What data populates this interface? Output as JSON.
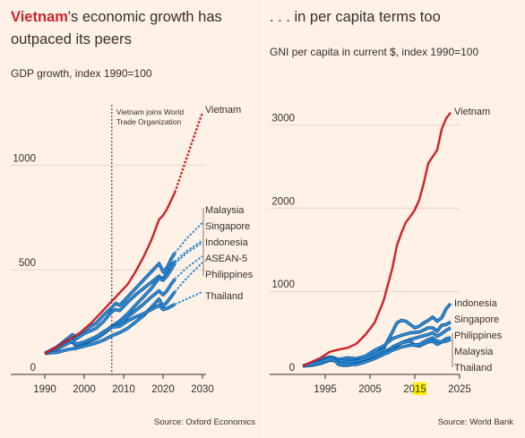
{
  "chart_data": [
    {
      "type": "line",
      "title": "Vietnam's economic growth has outpaced its peers",
      "title_highlight": "Vietnam",
      "title_rest": "'s economic growth has",
      "title_line2": "outpaced its peers",
      "subtitle": "GDP growth, index 1990=100",
      "source": "Source: Oxford Economics",
      "xlim": [
        1990,
        2030
      ],
      "ylim": [
        0,
        1300
      ],
      "x_ticks": [
        1990,
        2000,
        2010,
        2020,
        2030
      ],
      "y_ticks": [
        0,
        500,
        1000
      ],
      "grid": "horizontal",
      "annotation": {
        "x": 2007,
        "lines": [
          "Vietnam joins World",
          "Trade Organization"
        ]
      },
      "projection_start": 2023,
      "colors": {
        "vietnam": "#cc2229",
        "peers": "#2e8ed6",
        "peer_outline": "#0f5499"
      },
      "series": [
        {
          "name": "Vietnam",
          "color": "#cc2229",
          "x": [
            1990,
            1993,
            1996,
            1999,
            2002,
            2005,
            2007,
            2009,
            2011,
            2013,
            2015,
            2017,
            2019,
            2020,
            2021,
            2022,
            2023,
            2025,
            2027,
            2029,
            2030
          ],
          "values": [
            100,
            130,
            165,
            200,
            250,
            310,
            350,
            390,
            430,
            490,
            560,
            640,
            740,
            760,
            790,
            830,
            870,
            980,
            1090,
            1200,
            1250
          ]
        },
        {
          "name": "Malaysia",
          "color": "#2e8ed6",
          "x": [
            1990,
            1993,
            1996,
            1997,
            1998,
            2000,
            2003,
            2005,
            2007,
            2008,
            2009,
            2011,
            2013,
            2015,
            2017,
            2019,
            2020,
            2021,
            2022,
            2023,
            2026,
            2030
          ],
          "values": [
            100,
            130,
            175,
            190,
            180,
            210,
            245,
            285,
            320,
            340,
            330,
            370,
            410,
            450,
            490,
            530,
            490,
            510,
            550,
            580,
            650,
            725
          ]
        },
        {
          "name": "Singapore",
          "color": "#2e8ed6",
          "x": [
            1990,
            1993,
            1996,
            1998,
            2000,
            2003,
            2005,
            2007,
            2008,
            2009,
            2011,
            2013,
            2015,
            2017,
            2019,
            2020,
            2021,
            2022,
            2023,
            2026,
            2030
          ],
          "values": [
            100,
            125,
            160,
            170,
            195,
            220,
            255,
            300,
            310,
            305,
            345,
            380,
            410,
            440,
            470,
            450,
            500,
            520,
            540,
            590,
            640
          ]
        },
        {
          "name": "Indonesia",
          "color": "#2e8ed6",
          "x": [
            1990,
            1993,
            1996,
            1997,
            1998,
            2000,
            2003,
            2005,
            2007,
            2009,
            2011,
            2013,
            2015,
            2017,
            2019,
            2020,
            2021,
            2022,
            2023,
            2026,
            2030
          ],
          "values": [
            100,
            125,
            155,
            165,
            140,
            150,
            175,
            200,
            230,
            255,
            290,
            330,
            370,
            410,
            460,
            450,
            470,
            500,
            530,
            580,
            630
          ]
        },
        {
          "name": "ASEAN-5",
          "color": "#2e8ed6",
          "x": [
            1990,
            1993,
            1996,
            1997,
            1998,
            2000,
            2003,
            2005,
            2007,
            2009,
            2011,
            2013,
            2015,
            2017,
            2019,
            2020,
            2021,
            2022,
            2023,
            2026,
            2030
          ],
          "values": [
            100,
            120,
            150,
            155,
            135,
            150,
            170,
            195,
            225,
            240,
            275,
            305,
            335,
            370,
            400,
            380,
            400,
            430,
            455,
            510,
            565
          ]
        },
        {
          "name": "Philippines",
          "color": "#2e8ed6",
          "x": [
            1990,
            1993,
            1996,
            1998,
            2000,
            2003,
            2005,
            2007,
            2009,
            2011,
            2013,
            2015,
            2017,
            2019,
            2020,
            2021,
            2022,
            2023,
            2026,
            2030
          ],
          "values": [
            100,
            105,
            120,
            125,
            135,
            150,
            165,
            185,
            200,
            220,
            250,
            280,
            320,
            360,
            325,
            345,
            370,
            395,
            460,
            535
          ]
        },
        {
          "name": "Thailand",
          "color": "#2e8ed6",
          "x": [
            1990,
            1993,
            1996,
            1997,
            1998,
            2000,
            2003,
            2005,
            2007,
            2009,
            2011,
            2013,
            2015,
            2017,
            2019,
            2020,
            2021,
            2022,
            2023,
            2026,
            2030
          ],
          "values": [
            100,
            130,
            165,
            160,
            145,
            155,
            180,
            205,
            225,
            230,
            255,
            275,
            290,
            310,
            330,
            310,
            315,
            325,
            335,
            360,
            395
          ]
        }
      ],
      "legend_labels": [
        "Vietnam",
        "Malaysia",
        "Singapore",
        "Indonesia",
        "ASEAN-5",
        "Philippines",
        "Thailand"
      ]
    },
    {
      "type": "line",
      "title": ". . . in per capita terms too",
      "subtitle": "GNI per capita in current $, index 1990=100",
      "source": "Source: World Bank",
      "xlim": [
        1990,
        2025
      ],
      "ylim": [
        0,
        3200
      ],
      "x_ticks": [
        1995,
        2005,
        2015,
        2025
      ],
      "x_tick_labels": [
        "1995",
        "2005",
        "2015",
        "2025"
      ],
      "highlighted_tick": "2015",
      "y_ticks": [
        0,
        1000,
        2000,
        3000
      ],
      "grid": "horizontal",
      "series": [
        {
          "name": "Vietnam",
          "color": "#cc2229",
          "x": [
            1990,
            1992,
            1994,
            1996,
            1998,
            2000,
            2002,
            2004,
            2006,
            2008,
            2010,
            2011,
            2012,
            2013,
            2014,
            2015,
            2016,
            2017,
            2018,
            2019,
            2020,
            2021,
            2022,
            2023
          ],
          "values": [
            100,
            150,
            200,
            270,
            300,
            320,
            370,
            480,
            620,
            880,
            1280,
            1550,
            1700,
            1830,
            1900,
            1980,
            2100,
            2300,
            2540,
            2620,
            2700,
            2950,
            3080,
            3150
          ]
        },
        {
          "name": "Indonesia",
          "color": "#2e8ed6",
          "x": [
            1990,
            1992,
            1994,
            1996,
            1997,
            1998,
            1999,
            2000,
            2002,
            2004,
            2006,
            2008,
            2010,
            2011,
            2012,
            2013,
            2014,
            2015,
            2016,
            2017,
            2018,
            2019,
            2020,
            2021,
            2022,
            2023
          ],
          "values": [
            100,
            130,
            160,
            200,
            190,
            120,
            110,
            110,
            130,
            160,
            230,
            310,
            510,
            620,
            650,
            640,
            600,
            560,
            580,
            620,
            650,
            690,
            640,
            680,
            790,
            850
          ]
        },
        {
          "name": "Singapore",
          "color": "#2e8ed6",
          "x": [
            1990,
            1992,
            1994,
            1996,
            1997,
            1998,
            1999,
            2000,
            2002,
            2004,
            2006,
            2008,
            2010,
            2012,
            2014,
            2016,
            2018,
            2019,
            2020,
            2021,
            2022,
            2023
          ],
          "values": [
            100,
            140,
            180,
            210,
            200,
            180,
            190,
            200,
            190,
            220,
            290,
            340,
            430,
            470,
            500,
            510,
            560,
            560,
            520,
            590,
            600,
            630
          ]
        },
        {
          "name": "Philippines",
          "color": "#2e8ed6",
          "x": [
            1990,
            1992,
            1994,
            1996,
            1998,
            2000,
            2002,
            2004,
            2006,
            2008,
            2010,
            2012,
            2014,
            2016,
            2018,
            2019,
            2020,
            2021,
            2022,
            2023
          ],
          "values": [
            100,
            110,
            130,
            170,
            160,
            170,
            170,
            180,
            220,
            270,
            320,
            380,
            420,
            450,
            480,
            500,
            460,
            490,
            530,
            560
          ]
        },
        {
          "name": "Malaysia",
          "color": "#2e8ed6",
          "x": [
            1990,
            1992,
            1994,
            1996,
            1997,
            1998,
            1999,
            2000,
            2002,
            2004,
            2006,
            2008,
            2009,
            2010,
            2012,
            2014,
            2015,
            2016,
            2018,
            2019,
            2020,
            2021,
            2022,
            2023
          ],
          "values": [
            100,
            130,
            160,
            200,
            190,
            140,
            140,
            150,
            160,
            190,
            240,
            300,
            260,
            330,
            380,
            400,
            350,
            340,
            390,
            400,
            360,
            390,
            430,
            440
          ]
        },
        {
          "name": "Thailand",
          "color": "#2e8ed6",
          "x": [
            1990,
            1992,
            1994,
            1996,
            1997,
            1998,
            1999,
            2000,
            2002,
            2004,
            2006,
            2008,
            2010,
            2012,
            2014,
            2016,
            2018,
            2019,
            2020,
            2021,
            2022,
            2023
          ],
          "values": [
            100,
            120,
            150,
            180,
            170,
            120,
            120,
            120,
            120,
            150,
            190,
            240,
            290,
            330,
            350,
            360,
            420,
            440,
            400,
            390,
            400,
            420
          ]
        }
      ],
      "legend_labels": [
        "Vietnam",
        "Indonesia",
        "Singapore",
        "Philippines",
        "Malaysia",
        "Thailand"
      ]
    }
  ]
}
